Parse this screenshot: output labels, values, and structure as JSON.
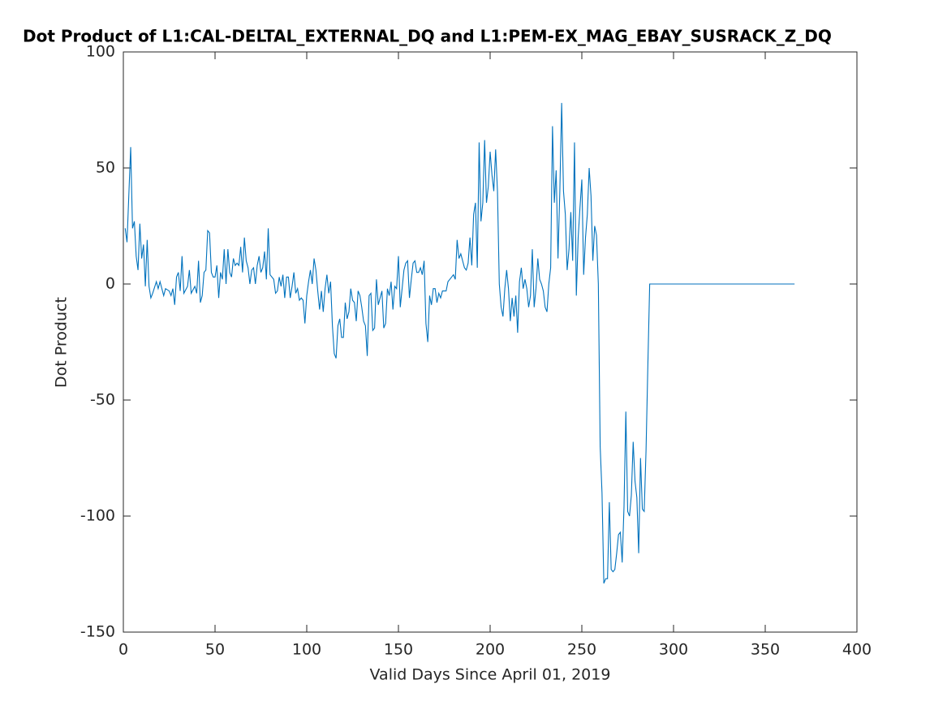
{
  "chart_data": {
    "type": "line",
    "title": "Dot Product of L1:CAL-DELTAL_EXTERNAL_DQ and L1:PEM-EX_MAG_EBAY_SUSRACK_Z_DQ",
    "xlabel": "Valid Days Since April 01, 2019",
    "ylabel": "Dot Product",
    "xlim": [
      0,
      400
    ],
    "xticks": [
      0,
      50,
      100,
      150,
      200,
      250,
      300,
      350,
      400
    ],
    "ylim": [
      -150,
      100
    ],
    "yticks": [
      -150,
      -100,
      -50,
      0,
      50,
      100
    ],
    "grid": false,
    "series": [
      {
        "color": "#0072bd",
        "x": [
          1,
          2,
          4,
          5,
          6,
          7,
          8,
          9,
          10,
          11,
          12,
          13,
          14,
          15,
          16,
          18,
          19,
          20,
          22,
          23,
          25,
          26,
          27,
          28,
          29,
          30,
          31,
          32,
          33,
          35,
          36,
          37,
          39,
          40,
          41,
          42,
          43,
          44,
          45,
          46,
          47,
          48,
          49,
          50,
          51,
          52,
          53,
          54,
          55,
          56,
          57,
          58,
          59,
          60,
          61,
          62,
          63,
          64,
          65,
          66,
          67,
          68,
          69,
          70,
          71,
          72,
          73,
          74,
          75,
          76,
          77,
          78,
          79,
          80,
          82,
          83,
          84,
          85,
          86,
          87,
          88,
          89,
          90,
          91,
          92,
          93,
          94,
          95,
          96,
          97,
          98,
          99,
          100,
          101,
          102,
          103,
          104,
          105,
          106,
          107,
          108,
          109,
          110,
          111,
          112,
          113,
          114,
          115,
          116,
          117,
          118,
          119,
          120,
          121,
          122,
          123,
          124,
          125,
          126,
          127,
          128,
          129,
          130,
          131,
          132,
          133,
          134,
          135,
          136,
          137,
          138,
          139,
          140,
          141,
          142,
          143,
          144,
          145,
          146,
          147,
          148,
          149,
          150,
          151,
          152,
          153,
          154,
          155,
          156,
          157,
          158,
          159,
          160,
          161,
          162,
          163,
          164,
          165,
          166,
          167,
          168,
          169,
          170,
          171,
          172,
          173,
          174,
          175,
          176,
          177,
          178,
          179,
          180,
          181,
          182,
          183,
          184,
          185,
          186,
          187,
          188,
          189,
          190,
          191,
          192,
          193,
          194,
          195,
          196,
          197,
          198,
          199,
          200,
          201,
          202,
          203,
          204,
          205,
          206,
          207,
          208,
          209,
          210,
          211,
          212,
          213,
          214,
          215,
          216,
          217,
          218,
          219,
          220,
          221,
          222,
          223,
          224,
          225,
          226,
          227,
          228,
          229,
          230,
          231,
          232,
          233,
          234,
          235,
          236,
          237,
          238,
          239,
          240,
          241,
          242,
          243,
          244,
          245,
          246,
          247,
          248,
          249,
          250,
          251,
          252,
          253,
          254,
          255,
          256,
          257,
          258,
          259,
          260,
          261,
          262,
          263,
          264,
          265,
          266,
          267,
          268,
          269,
          270,
          271,
          272,
          273,
          274,
          275,
          276,
          277,
          278,
          279,
          280,
          281,
          282,
          283,
          284,
          285,
          286,
          287,
          366
        ],
        "values": [
          24,
          18,
          59,
          24,
          27,
          12,
          6,
          26,
          11,
          17,
          -1,
          19,
          -1,
          -6,
          -4,
          1,
          -2,
          1,
          -5,
          -2,
          -3,
          -5,
          -2,
          -9,
          3,
          5,
          -3,
          12,
          -4,
          -1,
          6,
          -4,
          -1,
          -4,
          10,
          -8,
          -5,
          5,
          6,
          23,
          22,
          5,
          3,
          3,
          8,
          -6,
          5,
          2,
          15,
          0,
          15,
          5,
          3,
          11,
          8,
          9,
          8,
          16,
          5,
          20,
          10,
          7,
          0,
          6,
          7,
          0,
          8,
          12,
          5,
          7,
          14,
          2,
          24,
          4,
          2,
          -4,
          -3,
          3,
          -1,
          4,
          -6,
          3,
          3,
          -6,
          -1,
          5,
          -4,
          -2,
          -7,
          -6,
          -7,
          -17,
          -5,
          1,
          6,
          0,
          11,
          6,
          -3,
          -11,
          -3,
          -12,
          -2,
          4,
          -4,
          1,
          -18,
          -30,
          -32,
          -18,
          -15,
          -23,
          -23,
          -8,
          -15,
          -12,
          -2,
          -7,
          -8,
          -16,
          -3,
          -5,
          -10,
          -16,
          -18,
          -31,
          -5,
          -4,
          -20,
          -19,
          2,
          -9,
          -6,
          -3,
          -19,
          -17,
          -2,
          -5,
          1,
          -11,
          -1,
          -2,
          12,
          -10,
          -2,
          6,
          9,
          10,
          -6,
          2,
          9,
          10,
          5,
          5,
          7,
          4,
          10,
          -17,
          -25,
          -5,
          -9,
          -2,
          -2,
          -8,
          -4,
          -6,
          -3,
          -3,
          -3,
          1,
          2,
          3,
          4,
          2,
          19,
          11,
          13,
          10,
          7,
          6,
          9,
          20,
          8,
          30,
          35,
          7,
          61,
          27,
          35,
          62,
          35,
          42,
          57,
          47,
          40,
          58,
          40,
          0,
          -10,
          -14,
          -2,
          6,
          -2,
          -16,
          -6,
          -14,
          -5,
          -21,
          1,
          7,
          -2,
          2,
          -2,
          -10,
          -5,
          15,
          -10,
          -2,
          11,
          2,
          0,
          -3,
          -10,
          -12,
          0,
          7,
          68,
          35,
          49,
          11,
          40,
          78,
          40,
          30,
          6,
          15,
          31,
          10,
          61,
          -5,
          20,
          33,
          45,
          4,
          20,
          30,
          50,
          38,
          10,
          25,
          21,
          0,
          -70,
          -90,
          -129,
          -127,
          -127,
          -94,
          -123,
          -124,
          -123,
          -116,
          -108,
          -107,
          -120,
          -96,
          -55,
          -98,
          -100,
          -91,
          -68,
          -85,
          -92,
          -116,
          -75,
          -97,
          -98,
          -72,
          -35,
          0,
          0
        ]
      }
    ]
  }
}
